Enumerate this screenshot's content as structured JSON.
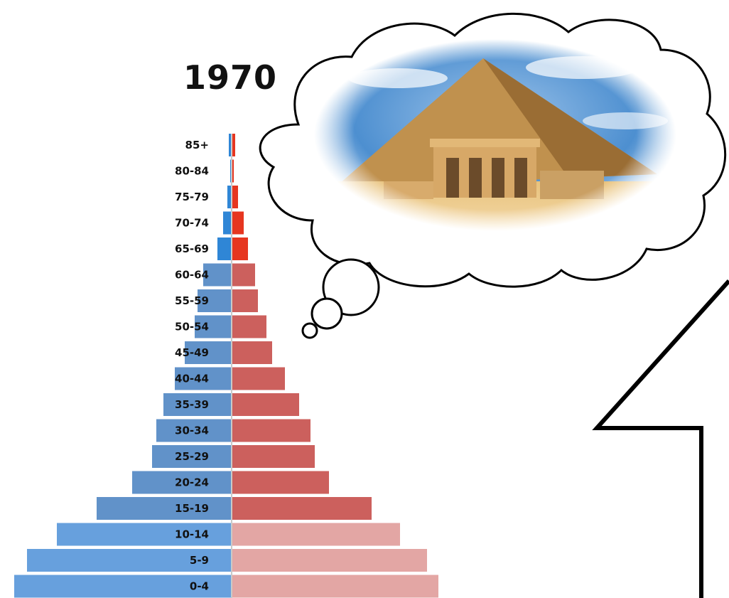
{
  "chart_data": {
    "type": "bar",
    "title": "1970",
    "orientation": "horizontal",
    "categories": [
      "85+",
      "80-84",
      "75-79",
      "70-74",
      "65-69",
      "60-64",
      "55-59",
      "50-54",
      "45-49",
      "40-44",
      "35-39",
      "30-34",
      "25-29",
      "20-24",
      "15-19",
      "10-14",
      "5-9",
      "0-4"
    ],
    "series": [
      {
        "side": "left",
        "values": [
          2,
          1,
          3,
          6,
          10,
          20,
          24,
          26,
          33,
          40,
          48,
          53,
          56,
          70,
          95,
          123,
          144,
          153
        ]
      },
      {
        "side": "right",
        "values": [
          2,
          1,
          4,
          8,
          11,
          16,
          18,
          24,
          28,
          37,
          47,
          55,
          58,
          68,
          98,
          118,
          137,
          145
        ]
      }
    ],
    "xlim": [
      -160,
      160
    ],
    "grid": false,
    "legend": "none"
  },
  "colors": {
    "left_top": "#2f86d6",
    "left_mid": "#6192c9",
    "left_bottom": "#67a0dd",
    "right_top": "#e63620",
    "right_mid": "#cc605d",
    "right_bottom": "#e3a6a4",
    "cloud_stroke": "#000000",
    "arrow_stroke": "#000000"
  },
  "illustration": {
    "thought_bubble": "thought-bubble-icon",
    "image": "pyramid-photo",
    "arrow": "upward-arrow-icon"
  }
}
